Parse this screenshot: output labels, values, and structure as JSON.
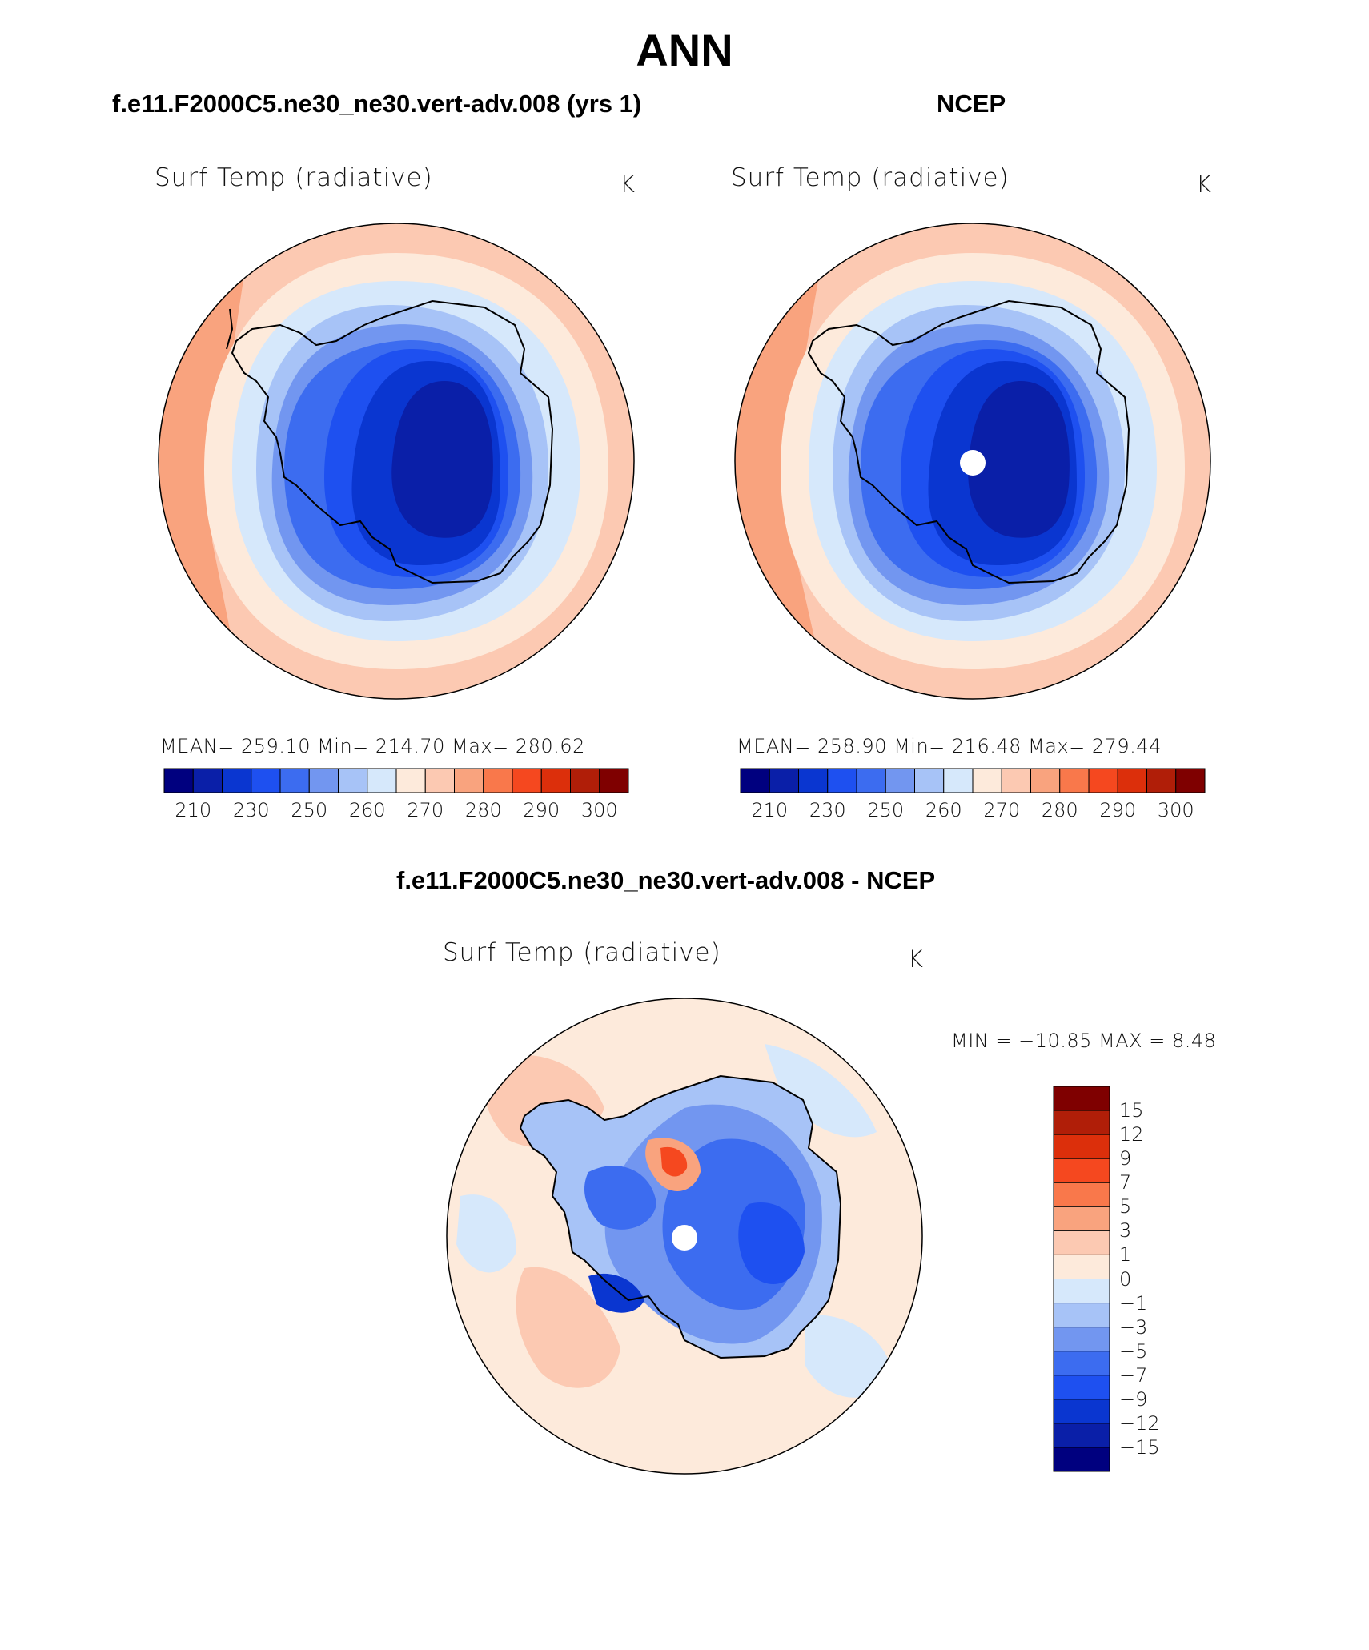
{
  "figure": {
    "title": "ANN",
    "colors": {
      "full_field": [
        "#00007f",
        "#0a1fa8",
        "#0a36d0",
        "#1e50f0",
        "#3c6cf0",
        "#7296f0",
        "#a7c3f7",
        "#d6e8fb",
        "#fdeadb",
        "#fcc9b2",
        "#f9a37e",
        "#f9784b",
        "#f5481f",
        "#dc2f0b",
        "#b01e08",
        "#7f0000"
      ],
      "difference": [
        "#00007f",
        "#0a1fa8",
        "#0a36d0",
        "#1e50f0",
        "#3c6cf0",
        "#7296f0",
        "#a7c3f7",
        "#d6e8fb",
        "#fdeadb",
        "#fcc9b2",
        "#f9a37e",
        "#f9784b",
        "#f5481f",
        "#dc2f0b",
        "#b01e08",
        "#7f0000"
      ]
    }
  },
  "panels": [
    {
      "title": "f.e11.F2000C5.ne30_ne30.vert-adv.008 (yrs 1)",
      "variable": "Surf Temp (radiative)",
      "units": "K",
      "stats": "MEAN=  259.10   Min=  214.70   Max=  280.62",
      "colorbar_labels": [
        "210",
        "230",
        "250",
        "260",
        "270",
        "280",
        "290",
        "300"
      ]
    },
    {
      "title": "NCEP",
      "variable": "Surf Temp (radiative)",
      "units": "K",
      "stats": "MEAN=  258.90   Min=  216.48   Max=  279.44",
      "colorbar_labels": [
        "210",
        "230",
        "250",
        "260",
        "270",
        "280",
        "290",
        "300"
      ]
    },
    {
      "title": "f.e11.F2000C5.ne30_ne30.vert-adv.008 - NCEP",
      "variable": "Surf Temp (radiative)",
      "units": "K",
      "stats": "MIN =  −10.85  MAX =     8.48",
      "colorbar_labels": [
        "15",
        "12",
        "9",
        "7",
        "5",
        "3",
        "1",
        "0",
        "−1",
        "−3",
        "−5",
        "−7",
        "−9",
        "−12",
        "−15"
      ]
    }
  ]
}
